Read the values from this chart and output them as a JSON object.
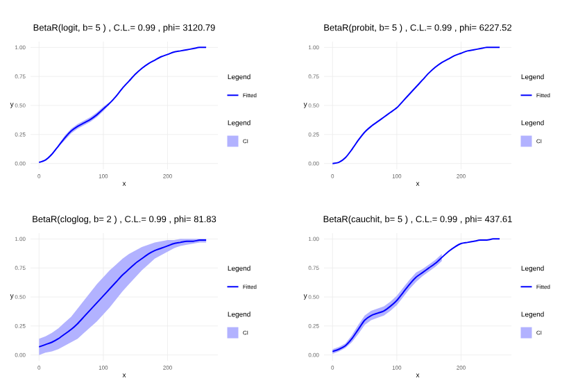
{
  "chart_data": [
    {
      "type": "line",
      "title": "BetaR(logit, b= 5 ) , C.L.= 0.99 , phi= 3120.79",
      "xlabel": "x",
      "ylabel": "y",
      "legend_title": "Legend",
      "legend": "right",
      "grid": true,
      "annotations": [
        "CI"
      ],
      "x": [
        0,
        10,
        20,
        30,
        40,
        50,
        60,
        70,
        80,
        90,
        100,
        110,
        120,
        130,
        140,
        150,
        160,
        170,
        180,
        190,
        200,
        210,
        220,
        230,
        240,
        250,
        260
      ],
      "xlim": [
        -13.25,
        278.25
      ],
      "ylim": [
        -0.05,
        1.05
      ],
      "xticks": [
        0,
        100,
        200
      ],
      "yticks": [
        {
          "value": 0,
          "label": "0.00"
        },
        {
          "value": 0.25,
          "label": "0.25"
        },
        {
          "value": 0.5,
          "label": "0.50"
        },
        {
          "value": 0.75,
          "label": "0.75"
        },
        {
          "value": 1,
          "label": "1.00"
        }
      ],
      "series": [
        {
          "name": "Fitted",
          "color": "#0000ff",
          "values": [
            0.01,
            0.03,
            0.08,
            0.15,
            0.22,
            0.28,
            0.32,
            0.35,
            0.38,
            0.42,
            0.47,
            0.52,
            0.58,
            0.65,
            0.71,
            0.77,
            0.82,
            0.86,
            0.89,
            0.92,
            0.94,
            0.96,
            0.97,
            0.98,
            0.99,
            1.0,
            1.0
          ],
          "lower": [
            null,
            null,
            null,
            0.14,
            0.2,
            0.26,
            0.3,
            0.33,
            0.36,
            0.4,
            0.45,
            0.51,
            null,
            null,
            null,
            null,
            null,
            null,
            null,
            null,
            null,
            null,
            null,
            null,
            null,
            null,
            null
          ],
          "upper": [
            null,
            null,
            null,
            0.16,
            0.24,
            0.3,
            0.34,
            0.37,
            0.4,
            0.44,
            0.49,
            0.53,
            null,
            null,
            null,
            null,
            null,
            null,
            null,
            null,
            null,
            null,
            null,
            null,
            null,
            null,
            null
          ]
        }
      ]
    },
    {
      "type": "line",
      "title": "BetaR(probit, b= 5 ) , C.L.= 0.99 , phi= 6227.52",
      "xlabel": "x",
      "ylabel": "y",
      "legend_title": "Legend",
      "legend": "right",
      "grid": true,
      "annotations": [
        "CI"
      ],
      "x": [
        0,
        10,
        20,
        30,
        40,
        50,
        60,
        70,
        80,
        90,
        100,
        110,
        120,
        130,
        140,
        150,
        160,
        170,
        180,
        190,
        200,
        210,
        220,
        230,
        240,
        250,
        260
      ],
      "xlim": [
        -13.25,
        278.25
      ],
      "ylim": [
        -0.05,
        1.05
      ],
      "xticks": [
        0,
        100,
        200
      ],
      "yticks": [
        {
          "value": 0,
          "label": "0.00"
        },
        {
          "value": 0.25,
          "label": "0.25"
        },
        {
          "value": 0.5,
          "label": "0.50"
        },
        {
          "value": 0.75,
          "label": "0.75"
        },
        {
          "value": 1,
          "label": "1.00"
        }
      ],
      "series": [
        {
          "name": "Fitted",
          "color": "#0000ff",
          "values": [
            0.0,
            0.01,
            0.05,
            0.12,
            0.2,
            0.27,
            0.32,
            0.36,
            0.4,
            0.44,
            0.48,
            0.54,
            0.6,
            0.66,
            0.72,
            0.78,
            0.83,
            0.87,
            0.9,
            0.93,
            0.95,
            0.97,
            0.98,
            0.99,
            1.0,
            1.0,
            1.0
          ]
        }
      ]
    },
    {
      "type": "line",
      "title": "BetaR(cloglog, b= 2 ) , C.L.= 0.99 , phi= 81.83",
      "xlabel": "x",
      "ylabel": "y",
      "legend_title": "Legend",
      "legend": "right",
      "grid": true,
      "annotations": [
        "CI"
      ],
      "x": [
        0,
        10,
        20,
        30,
        40,
        50,
        60,
        70,
        80,
        90,
        100,
        110,
        120,
        130,
        140,
        150,
        160,
        170,
        180,
        190,
        200,
        210,
        220,
        230,
        240,
        250,
        260
      ],
      "xlim": [
        -13.25,
        278.25
      ],
      "ylim": [
        -0.05,
        1.05
      ],
      "xticks": [
        0,
        100,
        200
      ],
      "yticks": [
        {
          "value": 0,
          "label": "0.00"
        },
        {
          "value": 0.25,
          "label": "0.25"
        },
        {
          "value": 0.5,
          "label": "0.50"
        },
        {
          "value": 0.75,
          "label": "0.75"
        },
        {
          "value": 1,
          "label": "1.00"
        }
      ],
      "series": [
        {
          "name": "Fitted",
          "color": "#0000ff",
          "values": [
            0.07,
            0.09,
            0.11,
            0.14,
            0.18,
            0.22,
            0.27,
            0.33,
            0.39,
            0.45,
            0.51,
            0.57,
            0.63,
            0.69,
            0.74,
            0.79,
            0.83,
            0.87,
            0.9,
            0.92,
            0.94,
            0.96,
            0.97,
            0.98,
            0.98,
            0.99,
            0.99
          ],
          "lower": [
            0.0,
            0.02,
            0.03,
            0.05,
            0.08,
            0.11,
            0.14,
            0.19,
            0.24,
            0.29,
            0.35,
            0.41,
            0.48,
            0.55,
            0.61,
            0.67,
            0.73,
            0.78,
            0.83,
            0.86,
            0.89,
            0.92,
            0.94,
            0.95,
            0.96,
            0.97,
            0.97
          ],
          "upper": [
            0.14,
            0.16,
            0.19,
            0.23,
            0.28,
            0.33,
            0.4,
            0.47,
            0.54,
            0.61,
            0.67,
            0.73,
            0.78,
            0.83,
            0.87,
            0.9,
            0.93,
            0.95,
            0.97,
            0.98,
            0.99,
            0.99,
            1.0,
            1.0,
            1.0,
            1.0,
            1.0
          ]
        }
      ]
    },
    {
      "type": "line",
      "title": "BetaR(cauchit, b= 5 ) , C.L.= 0.99 , phi= 437.61",
      "xlabel": "x",
      "ylabel": "y",
      "legend_title": "Legend",
      "legend": "right",
      "grid": true,
      "annotations": [
        "CI"
      ],
      "x": [
        0,
        10,
        20,
        30,
        40,
        50,
        60,
        70,
        80,
        90,
        100,
        110,
        120,
        130,
        140,
        150,
        160,
        170,
        180,
        190,
        200,
        210,
        220,
        230,
        240,
        250,
        260
      ],
      "xlim": [
        -13.25,
        278.25
      ],
      "ylim": [
        -0.05,
        1.05
      ],
      "xticks": [
        0,
        100,
        200
      ],
      "yticks": [
        {
          "value": 0,
          "label": "0.00"
        },
        {
          "value": 0.25,
          "label": "0.25"
        },
        {
          "value": 0.5,
          "label": "0.50"
        },
        {
          "value": 0.75,
          "label": "0.75"
        },
        {
          "value": 1,
          "label": "1.00"
        }
      ],
      "series": [
        {
          "name": "Fitted",
          "color": "#0000ff",
          "values": [
            0.03,
            0.05,
            0.08,
            0.14,
            0.22,
            0.3,
            0.34,
            0.36,
            0.38,
            0.42,
            0.47,
            0.54,
            0.61,
            0.67,
            0.71,
            0.75,
            0.79,
            0.84,
            0.89,
            0.93,
            0.96,
            0.97,
            0.98,
            0.99,
            0.99,
            1.0,
            1.0
          ],
          "lower": [
            0.01,
            0.03,
            0.06,
            0.11,
            0.18,
            0.26,
            0.3,
            0.32,
            0.34,
            0.38,
            0.43,
            0.5,
            0.57,
            0.63,
            0.68,
            0.72,
            0.76,
            0.81,
            null,
            null,
            null,
            null,
            null,
            null,
            null,
            null,
            null
          ],
          "upper": [
            0.05,
            0.07,
            0.1,
            0.17,
            0.26,
            0.34,
            0.38,
            0.4,
            0.42,
            0.46,
            0.51,
            0.58,
            0.65,
            0.71,
            0.74,
            0.78,
            0.82,
            0.87,
            null,
            null,
            null,
            null,
            null,
            null,
            null,
            null,
            null
          ]
        }
      ]
    }
  ]
}
